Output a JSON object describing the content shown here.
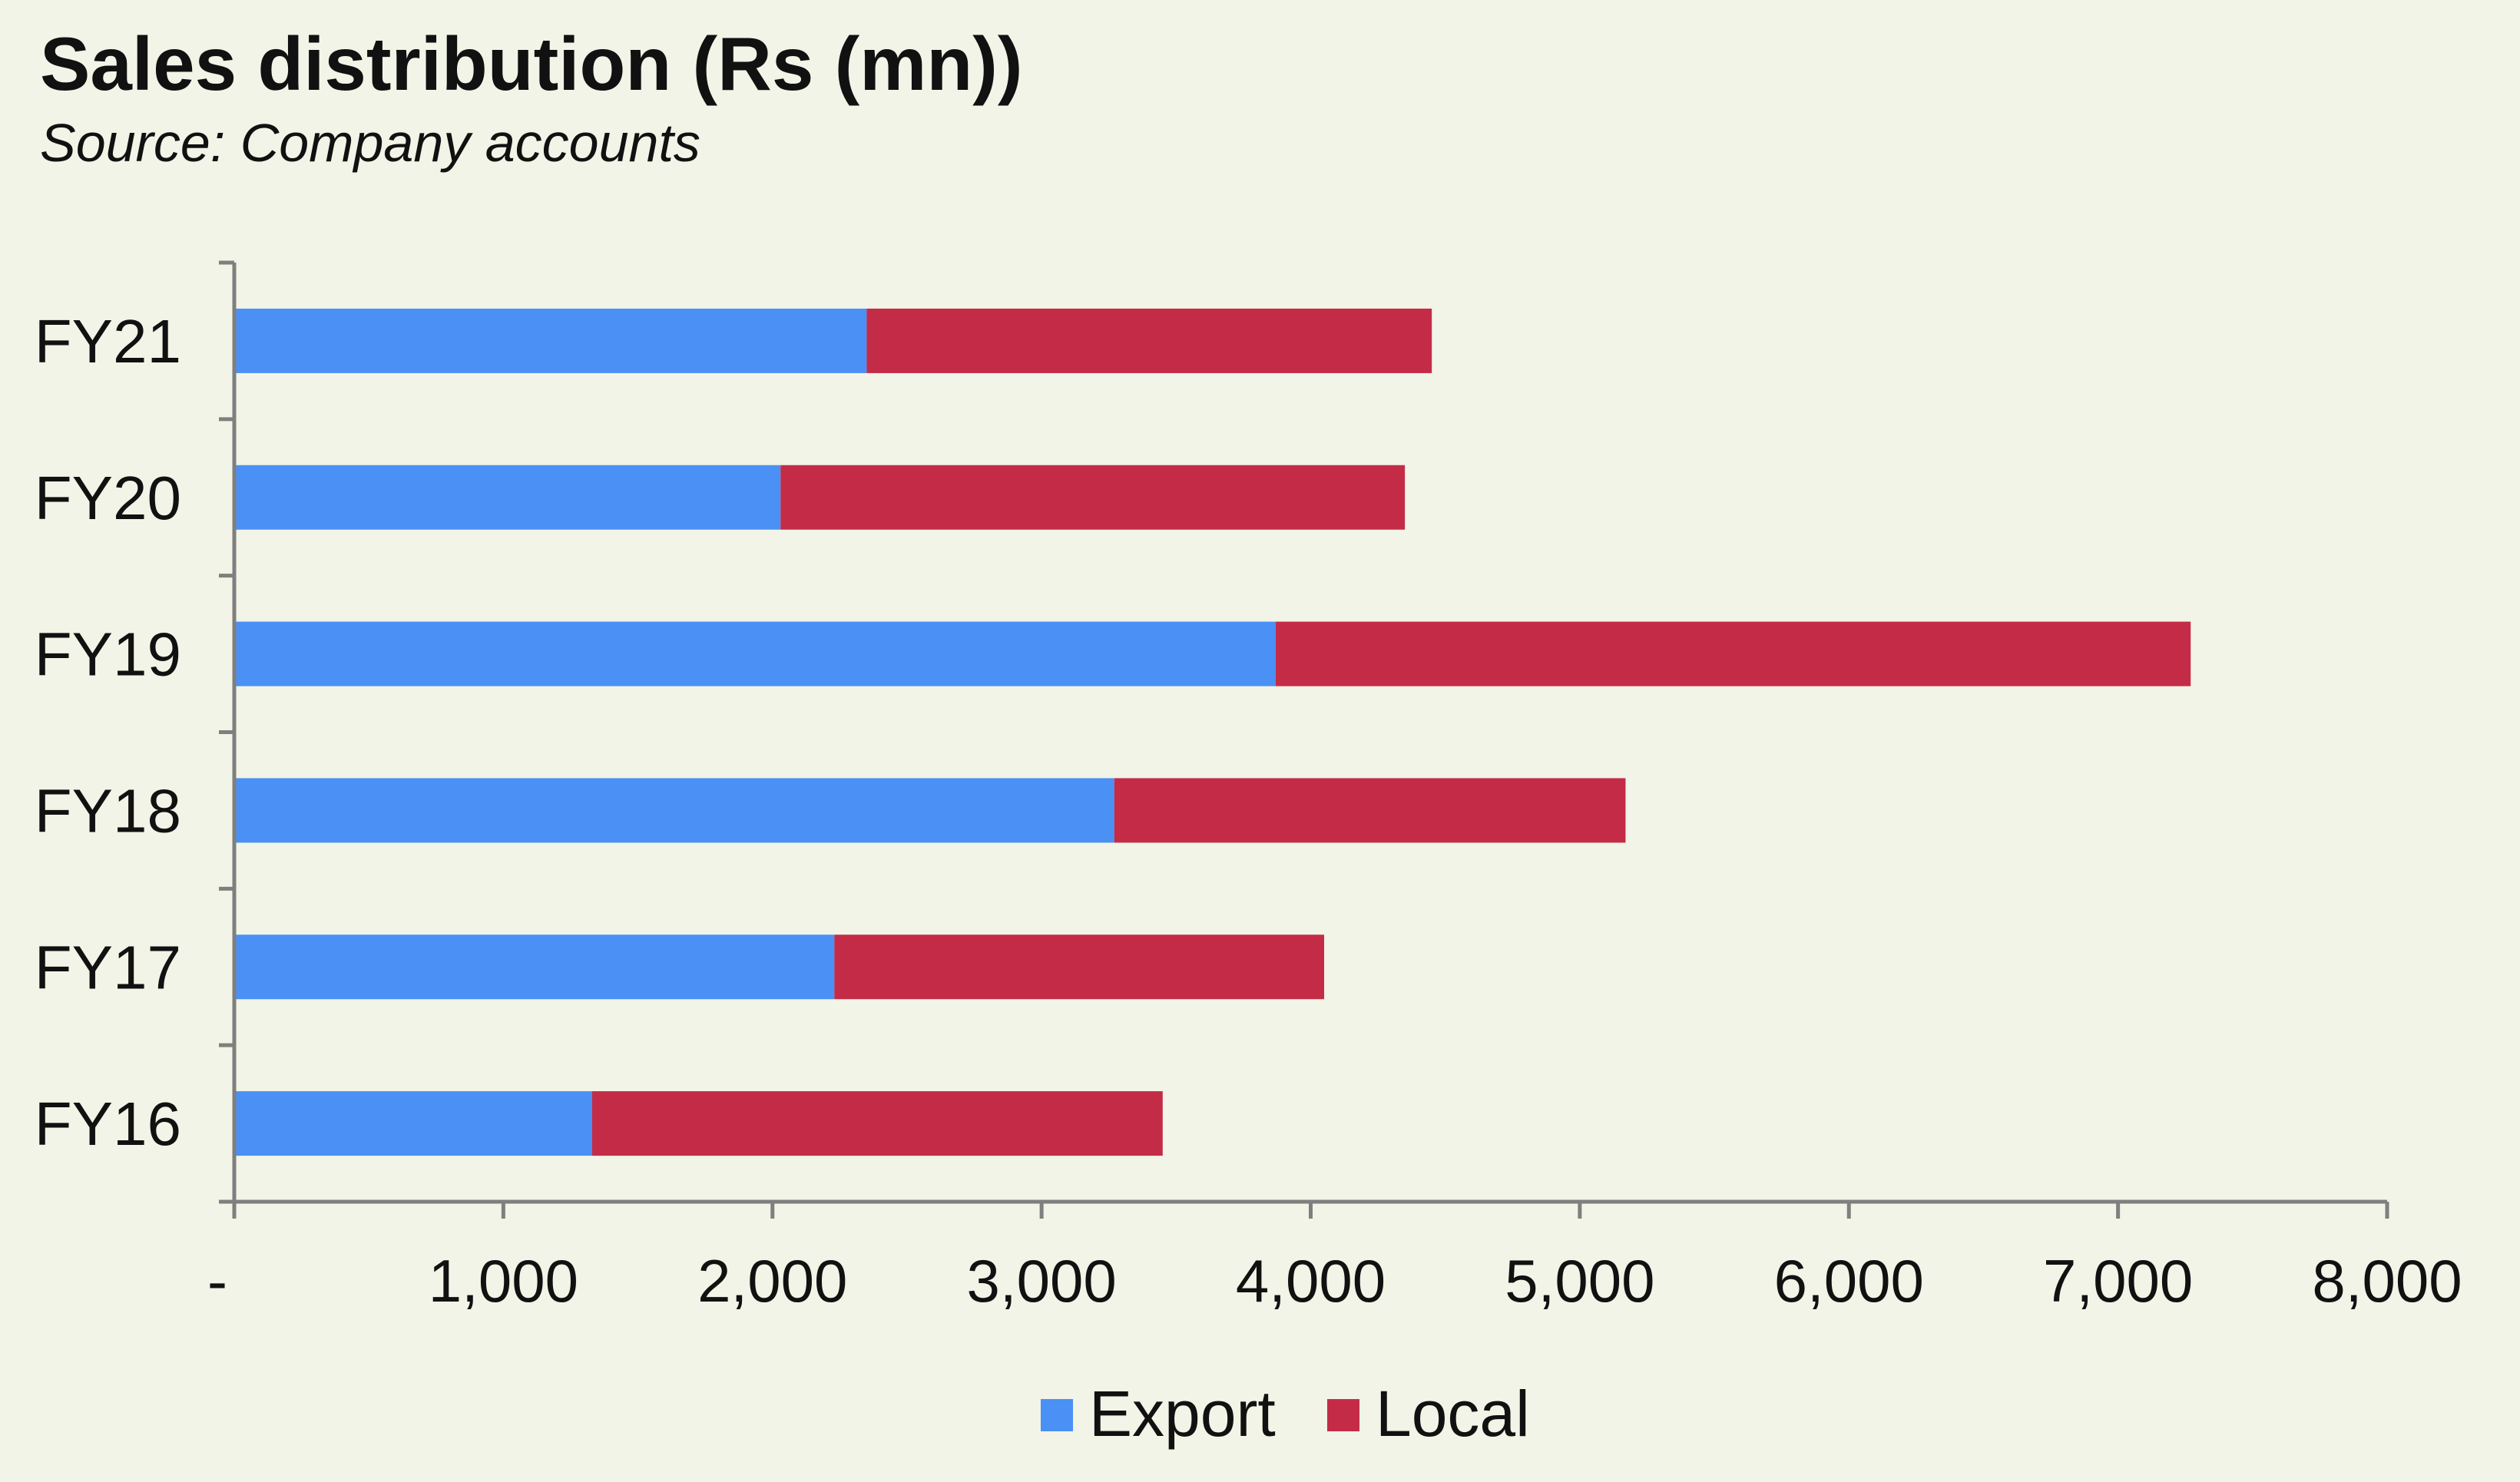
{
  "chart_data": {
    "type": "bar",
    "orientation": "horizontal",
    "stacked": true,
    "title": "Sales distribution (Rs (mn))",
    "subtitle": "Source: Company accounts",
    "categories": [
      "FY16",
      "FY17",
      "FY18",
      "FY19",
      "FY20",
      "FY21"
    ],
    "series": [
      {
        "name": "Export",
        "color": "#4a90f5",
        "values": [
          1330,
          2230,
          3270,
          3870,
          2030,
          2350
        ]
      },
      {
        "name": "Local",
        "color": "#c42b47",
        "values": [
          2120,
          1820,
          1900,
          3400,
          2320,
          2100
        ]
      }
    ],
    "xlim": [
      0,
      8000
    ],
    "xticks": [
      0,
      1000,
      2000,
      3000,
      4000,
      5000,
      6000,
      7000,
      8000
    ],
    "xtick_labels": [
      "-",
      "1,000",
      "2,000",
      "3,000",
      "4,000",
      "5,000",
      "6,000",
      "7,000",
      "8,000"
    ],
    "xlabel": "",
    "ylabel": "",
    "grid": false,
    "legend_position": "bottom"
  }
}
